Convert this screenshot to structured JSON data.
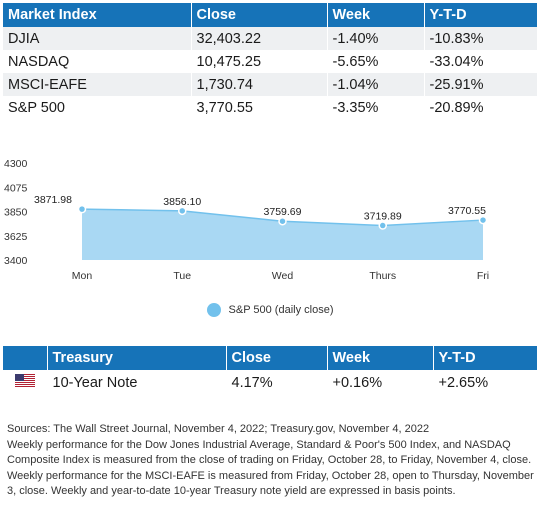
{
  "market": {
    "headers": [
      "Market Index",
      "Close",
      "Week",
      "Y-T-D"
    ],
    "rows": [
      [
        "DJIA",
        "32,403.22",
        "-1.40%",
        "-10.83%"
      ],
      [
        "NASDAQ",
        "10,475.25",
        "-5.65%",
        "-33.04%"
      ],
      [
        "MSCI-EAFE",
        "1,730.74",
        "-1.04%",
        "-25.91%"
      ],
      [
        "S&P 500",
        "3,770.55",
        "-3.35%",
        "-20.89%"
      ]
    ]
  },
  "chart_data": {
    "type": "area",
    "categories": [
      "Mon",
      "Tue",
      "Wed",
      "Thurs",
      "Fri"
    ],
    "series": [
      {
        "name": "S&P 500 (daily close)",
        "values": [
          3871.98,
          3856.1,
          3759.69,
          3719.89,
          3770.55
        ]
      }
    ],
    "data_labels": [
      "3871.98",
      "3856.10",
      "3759.69",
      "3719.89",
      "3770.55"
    ],
    "yticks": [
      "4300",
      "4075",
      "3850",
      "3625",
      "3400"
    ],
    "ylim": [
      3400,
      4300
    ],
    "title": "",
    "xlabel": "",
    "ylabel": "",
    "grid": false,
    "legend_position": "bottom",
    "colors": {
      "fill": "#a9d8f3",
      "line": "#72c1ec",
      "marker": "#72c1ec"
    }
  },
  "legend": {
    "label": "S&P 500 (daily close)"
  },
  "treasury": {
    "headers": [
      "Treasury",
      "Close",
      "Week",
      "Y-T-D"
    ],
    "flag_icon": "us-flag-icon",
    "row": {
      "name": "10-Year Note",
      "close": "4.17%",
      "week": "+0.16%",
      "ytd": "+2.65%"
    }
  },
  "sources": {
    "line1": "Sources: The Wall Street Journal, November 4, 2022; Treasury.gov, November 4, 2022",
    "line2": "Weekly performance for the Dow Jones Industrial Average, Standard & Poor's 500 Index, and NASDAQ Composite Index is measured from the close of trading on Friday, October 28, to Friday, November 4, close.",
    "line3": "Weekly performance for the MSCI-EAFE is measured from Friday, October 28, open to Thursday, November 3, close. Weekly and year-to-date 10-year Treasury note yield are expressed in basis points."
  },
  "colors": {
    "header_bg": "#1673b8",
    "stripe": "#eef0f2"
  }
}
